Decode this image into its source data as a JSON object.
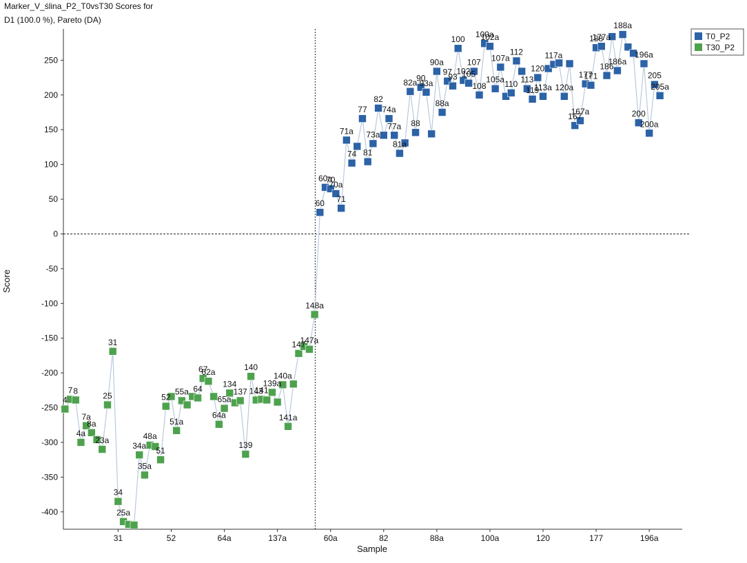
{
  "chart_data": {
    "type": "scatter",
    "title_line1": "Marker_V_ślina_P2_T0vsT30 Scores for",
    "title_line2": "D1 (100.0 %), Pareto (DA)",
    "xlabel": "Sample",
    "ylabel": "Score",
    "ylim": [
      -425,
      295
    ],
    "y_ticks": [
      250,
      200,
      150,
      100,
      50,
      0,
      -50,
      -100,
      -150,
      -200,
      -250,
      -300,
      -350,
      -400
    ],
    "x_tick_labels": [
      "31",
      "52",
      "64a",
      "137a",
      "60a",
      "82",
      "88a",
      "100a",
      "120",
      "177",
      "196a"
    ],
    "x_tick_index": [
      10,
      20,
      30,
      40,
      50,
      60,
      70,
      80,
      90,
      100,
      110
    ],
    "divider_index": 45,
    "legend": {
      "position": "top-right",
      "entries": [
        {
          "name": "T0_P2",
          "color": "#2c62a6"
        },
        {
          "name": "T30_P2",
          "color": "#4ea24e"
        }
      ]
    },
    "line_color": "#b9c9dc",
    "series": [
      {
        "name": "T30_P2",
        "color": "#4ea24e",
        "points": [
          {
            "i": 0,
            "y": -252,
            "label": "4"
          },
          {
            "i": 1,
            "y": -238,
            "label": "7"
          },
          {
            "i": 2,
            "y": -239,
            "label": "8"
          },
          {
            "i": 3,
            "y": -300,
            "label": "4a"
          },
          {
            "i": 4,
            "y": -276,
            "label": "7a"
          },
          {
            "i": 5,
            "y": -286,
            "label": "8a"
          },
          {
            "i": 6,
            "y": -296,
            "label": ""
          },
          {
            "i": 7,
            "y": -310,
            "label": "23a"
          },
          {
            "i": 8,
            "y": -246,
            "label": "25"
          },
          {
            "i": 9,
            "y": -169,
            "label": "31"
          },
          {
            "i": 10,
            "y": -385,
            "label": "34"
          },
          {
            "i": 11,
            "y": -414,
            "label": "25a"
          },
          {
            "i": 12,
            "y": -418,
            "label": ""
          },
          {
            "i": 13,
            "y": -419,
            "label": ""
          },
          {
            "i": 14,
            "y": -318,
            "label": "34a"
          },
          {
            "i": 15,
            "y": -347,
            "label": "35a"
          },
          {
            "i": 16,
            "y": -304,
            "label": "48a"
          },
          {
            "i": 17,
            "y": -306,
            "label": ""
          },
          {
            "i": 18,
            "y": -325,
            "label": "51"
          },
          {
            "i": 19,
            "y": -248,
            "label": "52"
          },
          {
            "i": 20,
            "y": -234,
            "label": ""
          },
          {
            "i": 21,
            "y": -283,
            "label": "51a"
          },
          {
            "i": 22,
            "y": -240,
            "label": "55a"
          },
          {
            "i": 23,
            "y": -246,
            "label": ""
          },
          {
            "i": 24,
            "y": -234,
            "label": ""
          },
          {
            "i": 25,
            "y": -236,
            "label": "64"
          },
          {
            "i": 26,
            "y": -208,
            "label": "67"
          },
          {
            "i": 27,
            "y": -212,
            "label": "62a"
          },
          {
            "i": 28,
            "y": -234,
            "label": ""
          },
          {
            "i": 29,
            "y": -274,
            "label": "64a"
          },
          {
            "i": 30,
            "y": -251,
            "label": "65a"
          },
          {
            "i": 31,
            "y": -229,
            "label": "134"
          },
          {
            "i": 32,
            "y": -243,
            "label": ""
          },
          {
            "i": 33,
            "y": -240,
            "label": "137"
          },
          {
            "i": 34,
            "y": -317,
            "label": "139"
          },
          {
            "i": 35,
            "y": -205,
            "label": "140"
          },
          {
            "i": 36,
            "y": -239,
            "label": "143"
          },
          {
            "i": 37,
            "y": -238,
            "label": "141"
          },
          {
            "i": 38,
            "y": -239,
            "label": ""
          },
          {
            "i": 39,
            "y": -228,
            "label": "139a"
          },
          {
            "i": 40,
            "y": -242,
            "label": ""
          },
          {
            "i": 41,
            "y": -217,
            "label": "140a"
          },
          {
            "i": 42,
            "y": -277,
            "label": "141a"
          },
          {
            "i": 43,
            "y": -216,
            "label": ""
          },
          {
            "i": 44,
            "y": -172,
            "label": "147"
          },
          {
            "i": 45,
            "y": -162,
            "label": ""
          },
          {
            "i": 46,
            "y": -166,
            "label": "147a"
          },
          {
            "i": 47,
            "y": -116,
            "label": "148a"
          }
        ]
      },
      {
        "name": "T0_P2",
        "color": "#2c62a6",
        "points": [
          {
            "i": 48,
            "y": 31,
            "label": "60"
          },
          {
            "i": 49,
            "y": 67,
            "label": "60a"
          },
          {
            "i": 50,
            "y": 65,
            "label": "70"
          },
          {
            "i": 51,
            "y": 58,
            "label": "70a"
          },
          {
            "i": 52,
            "y": 37,
            "label": "71"
          },
          {
            "i": 53,
            "y": 135,
            "label": "71a"
          },
          {
            "i": 54,
            "y": 102,
            "label": "74"
          },
          {
            "i": 55,
            "y": 126,
            "label": ""
          },
          {
            "i": 56,
            "y": 166,
            "label": "77"
          },
          {
            "i": 57,
            "y": 104,
            "label": "81"
          },
          {
            "i": 58,
            "y": 130,
            "label": "73a"
          },
          {
            "i": 59,
            "y": 181,
            "label": "82"
          },
          {
            "i": 60,
            "y": 142,
            "label": ""
          },
          {
            "i": 61,
            "y": 166,
            "label": "74a"
          },
          {
            "i": 62,
            "y": 142,
            "label": "77a"
          },
          {
            "i": 63,
            "y": 116,
            "label": "81a"
          },
          {
            "i": 64,
            "y": 131,
            "label": ""
          },
          {
            "i": 65,
            "y": 205,
            "label": "82a"
          },
          {
            "i": 66,
            "y": 146,
            "label": "88"
          },
          {
            "i": 67,
            "y": 211,
            "label": "90"
          },
          {
            "i": 68,
            "y": 204,
            "label": "93a"
          },
          {
            "i": 69,
            "y": 144,
            "label": ""
          },
          {
            "i": 70,
            "y": 234,
            "label": "90a"
          },
          {
            "i": 71,
            "y": 175,
            "label": "88a"
          },
          {
            "i": 72,
            "y": 220,
            "label": "97"
          },
          {
            "i": 73,
            "y": 213,
            "label": "93"
          },
          {
            "i": 74,
            "y": 267,
            "label": "100"
          },
          {
            "i": 75,
            "y": 221,
            "label": "102"
          },
          {
            "i": 76,
            "y": 217,
            "label": "105"
          },
          {
            "i": 77,
            "y": 234,
            "label": "107"
          },
          {
            "i": 78,
            "y": 200,
            "label": "108"
          },
          {
            "i": 79,
            "y": 274,
            "label": "100a"
          },
          {
            "i": 80,
            "y": 270,
            "label": "102a"
          },
          {
            "i": 81,
            "y": 209,
            "label": "105a"
          },
          {
            "i": 82,
            "y": 240,
            "label": "107a"
          },
          {
            "i": 83,
            "y": 198,
            "label": ""
          },
          {
            "i": 84,
            "y": 203,
            "label": "110"
          },
          {
            "i": 85,
            "y": 249,
            "label": "112"
          },
          {
            "i": 86,
            "y": 234,
            "label": ""
          },
          {
            "i": 87,
            "y": 209,
            "label": "113"
          },
          {
            "i": 88,
            "y": 194,
            "label": "119"
          },
          {
            "i": 89,
            "y": 225,
            "label": "120"
          },
          {
            "i": 90,
            "y": 198,
            "label": "113a"
          },
          {
            "i": 91,
            "y": 238,
            "label": ""
          },
          {
            "i": 92,
            "y": 244,
            "label": "117a"
          },
          {
            "i": 93,
            "y": 246,
            "label": ""
          },
          {
            "i": 94,
            "y": 198,
            "label": "120a"
          },
          {
            "i": 95,
            "y": 245,
            "label": ""
          },
          {
            "i": 96,
            "y": 156,
            "label": "167"
          },
          {
            "i": 97,
            "y": 163,
            "label": "167a"
          },
          {
            "i": 98,
            "y": 216,
            "label": "177"
          },
          {
            "i": 99,
            "y": 214,
            "label": "171"
          },
          {
            "i": 100,
            "y": 268,
            "label": "188"
          },
          {
            "i": 101,
            "y": 270,
            "label": "177a"
          },
          {
            "i": 102,
            "y": 228,
            "label": "186"
          },
          {
            "i": 103,
            "y": 284,
            "label": ""
          },
          {
            "i": 104,
            "y": 235,
            "label": "186a"
          },
          {
            "i": 105,
            "y": 287,
            "label": "188a"
          },
          {
            "i": 106,
            "y": 269,
            "label": ""
          },
          {
            "i": 107,
            "y": 260,
            "label": ""
          },
          {
            "i": 108,
            "y": 160,
            "label": "200"
          },
          {
            "i": 109,
            "y": 245,
            "label": "196a"
          },
          {
            "i": 110,
            "y": 145,
            "label": "200a"
          },
          {
            "i": 111,
            "y": 215,
            "label": "205"
          },
          {
            "i": 112,
            "y": 199,
            "label": "205a"
          }
        ]
      }
    ]
  }
}
